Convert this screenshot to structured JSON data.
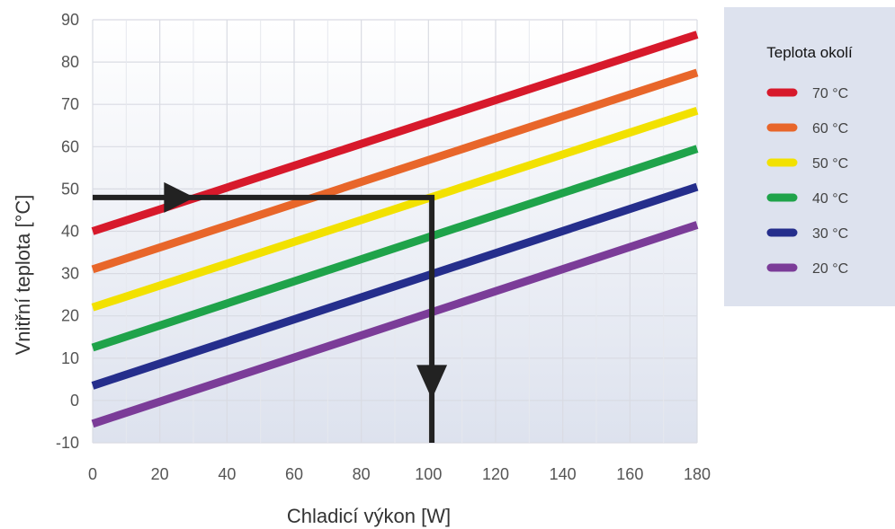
{
  "chart_data": {
    "type": "line",
    "xlabel": "Chladicí výkon [W]",
    "ylabel": "Vnitřní teplota [°C]",
    "xlim": [
      0,
      180
    ],
    "ylim": [
      -10,
      90
    ],
    "x_ticks": [
      "0",
      "20",
      "40",
      "60",
      "80",
      "100",
      "120",
      "140",
      "160",
      "180"
    ],
    "y_ticks": [
      "90",
      "80",
      "70",
      "60",
      "50",
      "40",
      "30",
      "20",
      "10",
      "0",
      "-10"
    ],
    "grid": true,
    "legend": {
      "title": "Teplota okolí",
      "placement": "right"
    },
    "series": [
      {
        "name": "70 °C",
        "color": "#d7192b",
        "x": [
          0,
          180
        ],
        "y": [
          40,
          86.5
        ]
      },
      {
        "name": "60 °C",
        "color": "#e8662a",
        "x": [
          0,
          180
        ],
        "y": [
          31,
          77.5
        ]
      },
      {
        "name": "50 °C",
        "color": "#f2e100",
        "x": [
          0,
          180
        ],
        "y": [
          22,
          68.5
        ]
      },
      {
        "name": "40 °C",
        "color": "#1fa34a",
        "x": [
          0,
          180
        ],
        "y": [
          12.5,
          59.5
        ]
      },
      {
        "name": "30 °C",
        "color": "#252e8c",
        "x": [
          0,
          180
        ],
        "y": [
          3.5,
          50.5
        ]
      },
      {
        "name": "20 °C",
        "color": "#7b3c98",
        "x": [
          0,
          180
        ],
        "y": [
          -5.5,
          41.5
        ]
      }
    ],
    "annotation": {
      "color": "#222222",
      "horizontal": {
        "y": 48,
        "x_from": 0,
        "x_to": 101,
        "arrow_at_x": 25
      },
      "vertical": {
        "x": 101,
        "y_from": 48,
        "y_to": -10,
        "arrow_at_y": 5
      }
    }
  }
}
